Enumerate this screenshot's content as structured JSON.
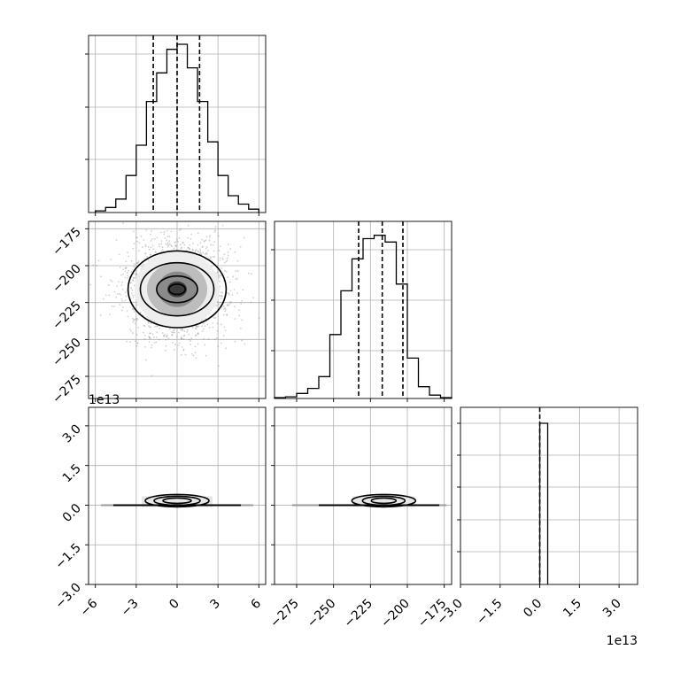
{
  "chart_data": [
    {
      "type": "histogram",
      "x_tick_labels": [
        "-6",
        "-3",
        "0",
        "3",
        "6"
      ],
      "x_ticks": [
        -6,
        -3,
        0,
        3,
        6
      ],
      "xlim": [
        -6.5,
        6.5
      ],
      "ylim": [
        0,
        1.0
      ],
      "bins": [
        -6.0,
        -5.25,
        -4.5,
        -3.75,
        -3.0,
        -2.25,
        -1.5,
        -0.75,
        0.0,
        0.75,
        1.5,
        2.25,
        3.0,
        3.75,
        4.5,
        5.25,
        6.0
      ],
      "hist_values": [
        0.01,
        0.03,
        0.08,
        0.22,
        0.4,
        0.66,
        0.83,
        0.97,
        1.0,
        0.86,
        0.66,
        0.42,
        0.22,
        0.1,
        0.05,
        0.02
      ],
      "quantiles": [
        -1.75,
        0.0,
        1.65
      ],
      "grid": true
    },
    {
      "type": "contour",
      "y_tick_labels": [
        "−175",
        "−200",
        "−225",
        "−250",
        "−275"
      ],
      "y_ticks": [
        -175,
        -200,
        -225,
        -250,
        -275
      ],
      "xlim": [
        -6.5,
        6.5
      ],
      "ylim": [
        -290,
        -170
      ],
      "center": [
        0.0,
        -216
      ],
      "contour_radii": [
        [
          0.6,
          3.5
        ],
        [
          1.5,
          9.0
        ],
        [
          2.7,
          18.0
        ],
        [
          3.6,
          26.0
        ]
      ],
      "grid": true
    },
    {
      "type": "histogram",
      "xlim": [
        -290,
        -170
      ],
      "ylim": [
        0,
        1.0
      ],
      "bins": [
        -290,
        -282.5,
        -275,
        -267.5,
        -260,
        -252.5,
        -245,
        -237.5,
        -230,
        -222.5,
        -215,
        -207.5,
        -200,
        -192.5,
        -185,
        -177.5,
        -170
      ],
      "hist_values": [
        0.005,
        0.01,
        0.03,
        0.06,
        0.13,
        0.38,
        0.64,
        0.83,
        0.95,
        0.97,
        0.93,
        0.68,
        0.24,
        0.07,
        0.02,
        0.005
      ],
      "quantiles": [
        -233,
        -217,
        -203
      ],
      "grid": true
    },
    {
      "type": "contour",
      "y_tick_labels": [
        "3.0",
        "1.5",
        "0.0",
        "−1.5",
        "−3.0"
      ],
      "y_ticks": [
        3.0,
        1.5,
        0.0,
        -1.5,
        -3.0
      ],
      "y_offset_label": "1e13",
      "x_tick_labels": [
        "−6",
        "−3",
        "0",
        "3",
        "6"
      ],
      "x_ticks": [
        -6,
        -3,
        0,
        3,
        6
      ],
      "xlim": [
        -6.5,
        6.5
      ],
      "ylim": [
        -3.0,
        3.7
      ],
      "center": [
        0.0,
        0.15
      ],
      "contour_radii": [
        [
          0.9,
          0.06
        ],
        [
          1.8,
          0.11
        ],
        [
          2.9,
          0.17
        ],
        [
          5.2,
          0.02
        ]
      ],
      "grid": true
    },
    {
      "type": "contour",
      "x_tick_labels": [
        "−275",
        "−250",
        "−225",
        "−200",
        "−175"
      ],
      "x_ticks": [
        -275,
        -250,
        -225,
        -200,
        -175
      ],
      "xlim": [
        -290,
        -170
      ],
      "ylim": [
        -3.0,
        3.7
      ],
      "center": [
        -216,
        0.15
      ],
      "contour_radii": [
        [
          5.0,
          0.06
        ],
        [
          13.0,
          0.11
        ],
        [
          25.0,
          0.17
        ],
        [
          45.0,
          0.02
        ]
      ],
      "grid": true
    },
    {
      "type": "histogram",
      "x_tick_labels": [
        "−3.0",
        "−1.5",
        "0.0",
        "1.5",
        "3.0"
      ],
      "x_ticks": [
        -3.0,
        -1.5,
        0.0,
        1.5,
        3.0
      ],
      "x_offset_label": "1e13",
      "xlim": [
        -3.0,
        3.7
      ],
      "ylim": [
        0,
        1.0
      ],
      "bar": {
        "from": 0.0,
        "to": 0.3,
        "value": 1.0
      },
      "quantiles": [
        0.0
      ],
      "grid": true
    }
  ]
}
